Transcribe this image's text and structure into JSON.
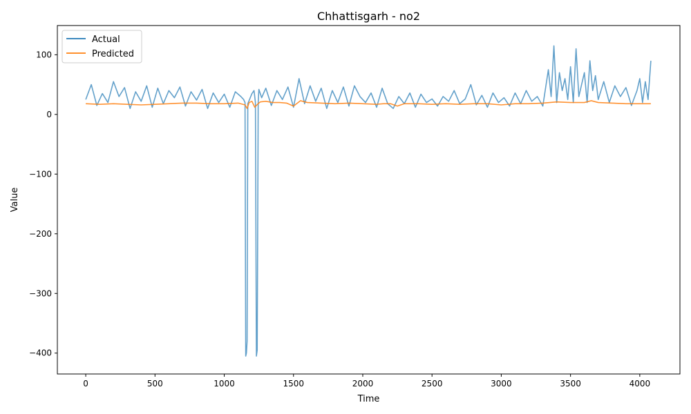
{
  "chart_data": {
    "type": "line",
    "title": "Chhattisgarh - no2",
    "xlabel": "Time",
    "ylabel": "Value",
    "xlim": [
      -205,
      4290
    ],
    "ylim": [
      -435,
      149
    ],
    "x_ticks": [
      0,
      500,
      1000,
      1500,
      2000,
      2500,
      3000,
      3500,
      4000
    ],
    "y_ticks": [
      100,
      0,
      -100,
      -200,
      -300,
      -400
    ],
    "y_tick_labels": [
      "100",
      "0",
      "−100",
      "−200",
      "−300",
      "−400"
    ],
    "legend": {
      "position": "top-left",
      "entries": [
        "Actual",
        "Predicted"
      ]
    },
    "grid": false,
    "colors": {
      "actual": "#1f77b4",
      "predicted": "#ff7f0e"
    },
    "series": [
      {
        "name": "Actual",
        "x": [
          0,
          40,
          80,
          120,
          160,
          200,
          240,
          280,
          320,
          360,
          400,
          440,
          480,
          520,
          560,
          600,
          640,
          680,
          720,
          760,
          800,
          840,
          880,
          920,
          960,
          1000,
          1040,
          1080,
          1120,
          1140,
          1150,
          1155,
          1160,
          1165,
          1170,
          1200,
          1215,
          1225,
          1232,
          1238,
          1245,
          1250,
          1270,
          1300,
          1340,
          1380,
          1420,
          1460,
          1500,
          1540,
          1580,
          1620,
          1660,
          1700,
          1740,
          1780,
          1820,
          1860,
          1900,
          1940,
          1980,
          2020,
          2060,
          2100,
          2140,
          2180,
          2220,
          2260,
          2300,
          2340,
          2380,
          2420,
          2460,
          2500,
          2540,
          2580,
          2620,
          2660,
          2700,
          2740,
          2780,
          2820,
          2860,
          2900,
          2940,
          2980,
          3020,
          3060,
          3100,
          3140,
          3180,
          3220,
          3260,
          3300,
          3340,
          3360,
          3380,
          3400,
          3420,
          3440,
          3460,
          3480,
          3500,
          3520,
          3540,
          3560,
          3580,
          3600,
          3620,
          3640,
          3660,
          3680,
          3700,
          3740,
          3780,
          3820,
          3860,
          3900,
          3940,
          3980,
          4000,
          4020,
          4040,
          4060,
          4080
        ],
        "y": [
          25,
          50,
          15,
          35,
          20,
          55,
          30,
          45,
          10,
          38,
          22,
          48,
          12,
          44,
          18,
          40,
          28,
          46,
          14,
          38,
          24,
          42,
          10,
          36,
          20,
          34,
          12,
          38,
          30,
          25,
          20,
          -405,
          -400,
          -380,
          18,
          35,
          40,
          20,
          -405,
          -395,
          20,
          42,
          28,
          44,
          15,
          40,
          25,
          46,
          12,
          60,
          18,
          48,
          22,
          44,
          10,
          40,
          20,
          46,
          14,
          48,
          30,
          20,
          36,
          12,
          44,
          18,
          10,
          30,
          18,
          36,
          12,
          34,
          20,
          26,
          14,
          30,
          22,
          40,
          18,
          26,
          50,
          16,
          32,
          12,
          36,
          20,
          28,
          14,
          36,
          18,
          40,
          22,
          30,
          14,
          75,
          30,
          115,
          20,
          70,
          40,
          60,
          25,
          80,
          20,
          110,
          30,
          50,
          70,
          20,
          90,
          40,
          65,
          25,
          55,
          20,
          48,
          30,
          45,
          15,
          40,
          60,
          20,
          55,
          25,
          90
        ]
      },
      {
        "name": "Predicted",
        "x": [
          0,
          100,
          200,
          300,
          400,
          500,
          600,
          700,
          800,
          900,
          1000,
          1100,
          1150,
          1165,
          1180,
          1200,
          1220,
          1240,
          1260,
          1300,
          1350,
          1400,
          1450,
          1500,
          1550,
          1600,
          1700,
          1800,
          1900,
          2000,
          2100,
          2150,
          2200,
          2250,
          2300,
          2400,
          2500,
          2600,
          2700,
          2800,
          2900,
          3000,
          3100,
          3200,
          3300,
          3400,
          3500,
          3600,
          3650,
          3700,
          3800,
          3900,
          4000,
          4080
        ],
        "y": [
          18,
          17,
          18,
          17,
          16,
          17,
          18,
          19,
          19,
          18,
          18,
          19,
          16,
          10,
          20,
          22,
          12,
          17,
          21,
          22,
          20,
          20,
          19,
          14,
          23,
          20,
          19,
          18,
          19,
          18,
          17,
          18,
          18,
          14,
          18,
          18,
          17,
          18,
          17,
          18,
          18,
          16,
          18,
          18,
          19,
          21,
          20,
          20,
          23,
          20,
          19,
          18,
          18,
          18
        ]
      }
    ]
  }
}
